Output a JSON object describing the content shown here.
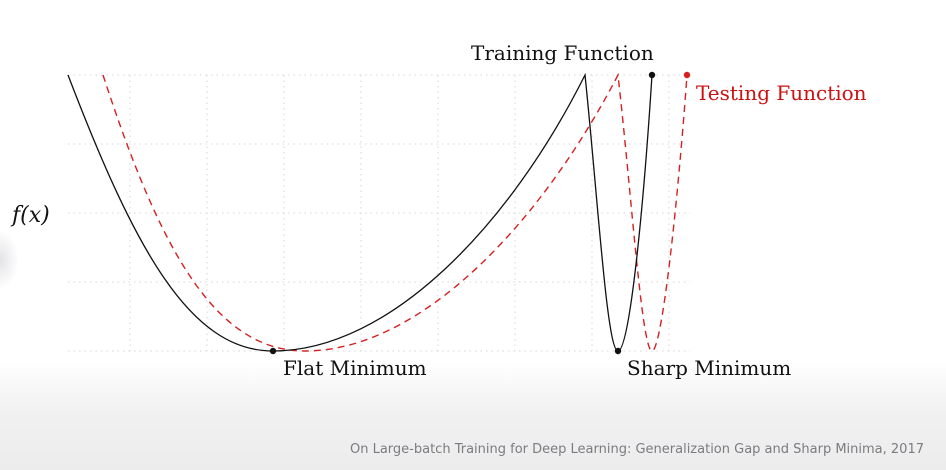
{
  "diagram": {
    "y_axis_label": "f(x)",
    "training_label": "Training Function",
    "testing_label": "Testing Function",
    "flat_label": "Flat Minimum",
    "sharp_label": "Sharp Minimum",
    "colors": {
      "training": "#111111",
      "testing": "#d42020",
      "grid": "#d6d6d6"
    }
  },
  "citation": "On Large-batch Training for Deep Learning: Generalization Gap and Sharp Minima, 2017"
}
